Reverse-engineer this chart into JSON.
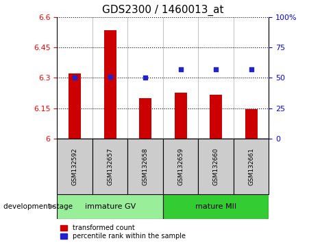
{
  "title": "GDS2300 / 1460013_at",
  "categories": [
    "GSM132592",
    "GSM132657",
    "GSM132658",
    "GSM132659",
    "GSM132660",
    "GSM132661"
  ],
  "bar_values": [
    6.32,
    6.535,
    6.2,
    6.225,
    6.215,
    6.145
  ],
  "bar_bottom": 6.0,
  "percentile_values": [
    50,
    51,
    50,
    57,
    57,
    57
  ],
  "ylim_left": [
    6.0,
    6.6
  ],
  "ylim_right": [
    0,
    100
  ],
  "yticks_left": [
    6.0,
    6.15,
    6.3,
    6.45,
    6.6
  ],
  "yticks_right": [
    0,
    25,
    50,
    75,
    100
  ],
  "ytick_labels_left": [
    "6",
    "6.15",
    "6.3",
    "6.45",
    "6.6"
  ],
  "ytick_labels_right": [
    "0",
    "25",
    "50",
    "75",
    "100%"
  ],
  "bar_color": "#cc0000",
  "percentile_color": "#2222cc",
  "group1_label": "immature GV",
  "group2_label": "mature MII",
  "group1_color": "#99ee99",
  "group2_color": "#33cc33",
  "group1_indices": [
    0,
    1,
    2
  ],
  "group2_indices": [
    3,
    4,
    5
  ],
  "xlabel_left": "development stage",
  "legend_bar": "transformed count",
  "legend_pct": "percentile rank within the sample",
  "xtick_bg_color": "#cccccc",
  "plot_bg_color": "#ffffff",
  "title_fontsize": 11,
  "tick_fontsize": 8,
  "bar_width": 0.35
}
